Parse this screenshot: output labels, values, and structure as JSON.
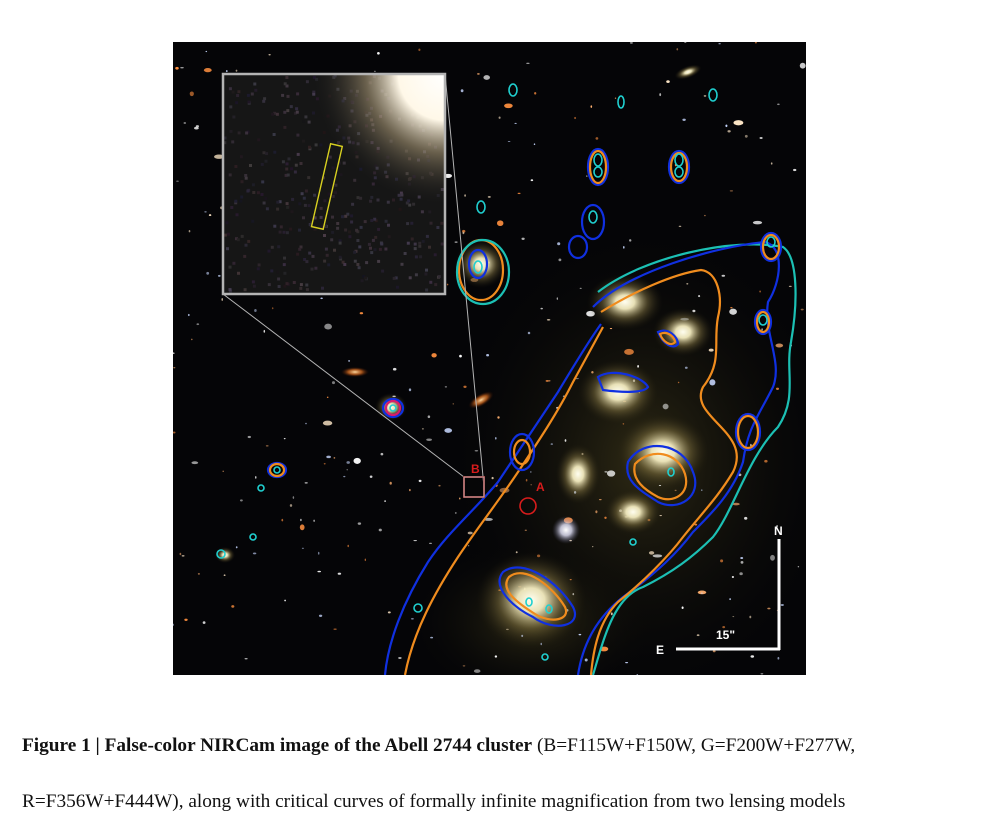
{
  "figure": {
    "labels": {
      "point_a": "A",
      "point_b": "B",
      "compass_north": "N",
      "compass_east": "E",
      "scale_bar": "15\""
    },
    "colors": {
      "model_1_curve": "#1030e0",
      "model_2_curve": "#f08c1e",
      "outer_curve": "#1cc0b4",
      "inner_contour": "#20d0d0",
      "marker": "#d81c1c",
      "inset_box": "#d8d020",
      "inset_frame": "#b4b4b4"
    }
  },
  "caption": {
    "heading": "Figure 1 | False-color NIRCam image of the Abell 2744 cluster",
    "line1_rest": " (B=F115W+F150W, G=F200W+F277W,",
    "line2": "R=F356W+F444W), along with critical curves of formally infinite magnification from two lensing models"
  }
}
